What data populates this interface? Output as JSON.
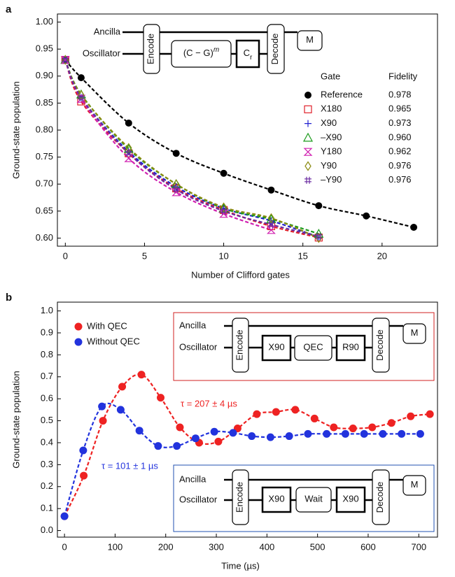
{
  "chart_data": [
    {
      "type": "scatter",
      "panel_label": "a",
      "xlabel": "Number of Clifford gates",
      "ylabel": "Ground-state population",
      "xlim": [
        -0.5,
        23.5
      ],
      "ylim": [
        0.585,
        1.015
      ],
      "xticks": [
        0,
        5,
        10,
        15,
        20
      ],
      "yticks": [
        {
          "value": 0.6,
          "label": "0.60"
        },
        {
          "value": 0.65,
          "label": "0.65"
        },
        {
          "value": 0.7,
          "label": "0.70"
        },
        {
          "value": 0.75,
          "label": "0.75"
        },
        {
          "value": 0.8,
          "label": "0.80"
        },
        {
          "value": 0.85,
          "label": "0.85"
        },
        {
          "value": 0.9,
          "label": "0.90"
        },
        {
          "value": 0.95,
          "label": "0.95"
        },
        {
          "value": 1,
          "label": "1.00"
        }
      ],
      "legend_header": [
        "Gate",
        "Fidelity"
      ],
      "series": [
        {
          "name": "Reference",
          "color": "#000000",
          "marker": "filled-circle",
          "fidelity": "0.978",
          "x": [
            0,
            1,
            4,
            7,
            10,
            13,
            16,
            19,
            22
          ],
          "values": [
            0.93,
            0.897,
            0.813,
            0.757,
            0.72,
            0.689,
            0.66,
            0.641,
            0.62
          ]
        },
        {
          "name": "X180",
          "color": "#e0202a",
          "marker": "open-square",
          "fidelity": "0.965",
          "x": [
            0,
            1,
            4,
            7,
            10,
            13,
            16
          ],
          "values": [
            0.93,
            0.853,
            0.757,
            0.692,
            0.652,
            0.622,
            0.601
          ]
        },
        {
          "name": "X90",
          "color": "#2020d0",
          "marker": "plus",
          "fidelity": "0.973",
          "x": [
            0,
            1,
            4,
            7,
            10,
            13,
            16
          ],
          "values": [
            0.93,
            0.86,
            0.76,
            0.695,
            0.655,
            0.632,
            0.602
          ]
        },
        {
          "name": "–X90",
          "color": "#1a9a1a",
          "marker": "open-triangle",
          "fidelity": "0.960",
          "x": [
            0,
            1,
            4,
            7,
            10,
            13,
            16
          ],
          "values": [
            0.93,
            0.866,
            0.765,
            0.7,
            0.655,
            0.635,
            0.608
          ]
        },
        {
          "name": "Y180",
          "color": "#d020b0",
          "marker": "hourglass",
          "fidelity": "0.962",
          "x": [
            0,
            1,
            4,
            7,
            10,
            13
          ],
          "values": [
            0.93,
            0.858,
            0.748,
            0.685,
            0.645,
            0.615
          ]
        },
        {
          "name": "Y90",
          "color": "#8a8a10",
          "marker": "open-diamond",
          "fidelity": "0.976",
          "x": [
            0,
            1,
            4,
            7,
            10,
            13,
            16
          ],
          "values": [
            0.93,
            0.865,
            0.767,
            0.7,
            0.657,
            0.637,
            0.6
          ]
        },
        {
          "name": "–Y90",
          "color": "#6a2aa0",
          "marker": "hash",
          "fidelity": "0.976",
          "x": [
            0,
            1,
            4,
            7,
            10,
            13,
            16
          ],
          "values": [
            0.93,
            0.86,
            0.757,
            0.69,
            0.65,
            0.625,
            0.603
          ]
        }
      ],
      "insets": [
        {
          "frame_color": null,
          "wires": [
            "Ancilla",
            "Oscillator"
          ],
          "gates": [
            {
              "label": "Encode"
            },
            {
              "label": "(C − G)",
              "sup": "m"
            },
            {
              "label": "C",
              "sub": "r"
            },
            {
              "label": "Decode"
            },
            {
              "label": "M"
            }
          ]
        }
      ]
    },
    {
      "type": "scatter",
      "panel_label": "b",
      "xlabel": "Time (µs)",
      "ylabel": "Ground-state population",
      "xlim": [
        -14,
        737
      ],
      "ylim": [
        -0.03,
        1.04
      ],
      "xticks": [
        0,
        100,
        200,
        300,
        400,
        500,
        600,
        700
      ],
      "yticks": [
        {
          "value": 0,
          "label": "0.0"
        },
        {
          "value": 0.1,
          "label": "0.1"
        },
        {
          "value": 0.2,
          "label": "0.2"
        },
        {
          "value": 0.3,
          "label": "0.3"
        },
        {
          "value": 0.4,
          "label": "0.4"
        },
        {
          "value": 0.5,
          "label": "0.5"
        },
        {
          "value": 0.6,
          "label": "0.6"
        },
        {
          "value": 0.7,
          "label": "0.7"
        },
        {
          "value": 0.8,
          "label": "0.8"
        },
        {
          "value": 0.9,
          "label": "0.9"
        },
        {
          "value": 1,
          "label": "1.0"
        }
      ],
      "series": [
        {
          "name": "With QEC",
          "color": "#ee2222",
          "marker": "filled-circle",
          "x": [
            0,
            38,
            76,
            114,
            152,
            190,
            228,
            266,
            304,
            342,
            380,
            418,
            456,
            494,
            532,
            570,
            608,
            646,
            684,
            722
          ],
          "values": [
            0.065,
            0.25,
            0.5,
            0.655,
            0.71,
            0.605,
            0.47,
            0.4,
            0.405,
            0.465,
            0.53,
            0.54,
            0.55,
            0.51,
            0.47,
            0.465,
            0.47,
            0.49,
            0.52,
            0.53
          ]
        },
        {
          "name": "Without QEC",
          "color": "#2233dd",
          "marker": "filled-circle",
          "x": [
            0,
            37,
            74,
            111,
            148,
            185,
            222,
            259,
            296,
            333,
            370,
            407,
            444,
            481,
            518,
            555,
            592,
            629,
            666,
            703
          ],
          "values": [
            0.065,
            0.365,
            0.565,
            0.55,
            0.455,
            0.385,
            0.385,
            0.42,
            0.45,
            0.445,
            0.43,
            0.425,
            0.43,
            0.44,
            0.44,
            0.44,
            0.44,
            0.44,
            0.44,
            0.44
          ]
        }
      ],
      "annotations": [
        {
          "text": "τ = 207 ± 4 µs",
          "color": "#ee2222"
        },
        {
          "text": "τ = 101 ± 1 µs",
          "color": "#2233dd"
        }
      ],
      "insets": [
        {
          "frame_color": "#d02020",
          "wires": [
            "Ancilla",
            "Oscillator"
          ],
          "gates": [
            {
              "label": "Encode"
            },
            {
              "label": "X90"
            },
            {
              "label": "QEC"
            },
            {
              "label": "R90"
            },
            {
              "label": "Decode"
            },
            {
              "label": "M"
            }
          ]
        },
        {
          "frame_color": "#2050b0",
          "wires": [
            "Ancilla",
            "Oscillator"
          ],
          "gates": [
            {
              "label": "Encode"
            },
            {
              "label": "X90"
            },
            {
              "label": "Wait"
            },
            {
              "label": "X90"
            },
            {
              "label": "Decode"
            },
            {
              "label": "M"
            }
          ]
        }
      ]
    }
  ]
}
